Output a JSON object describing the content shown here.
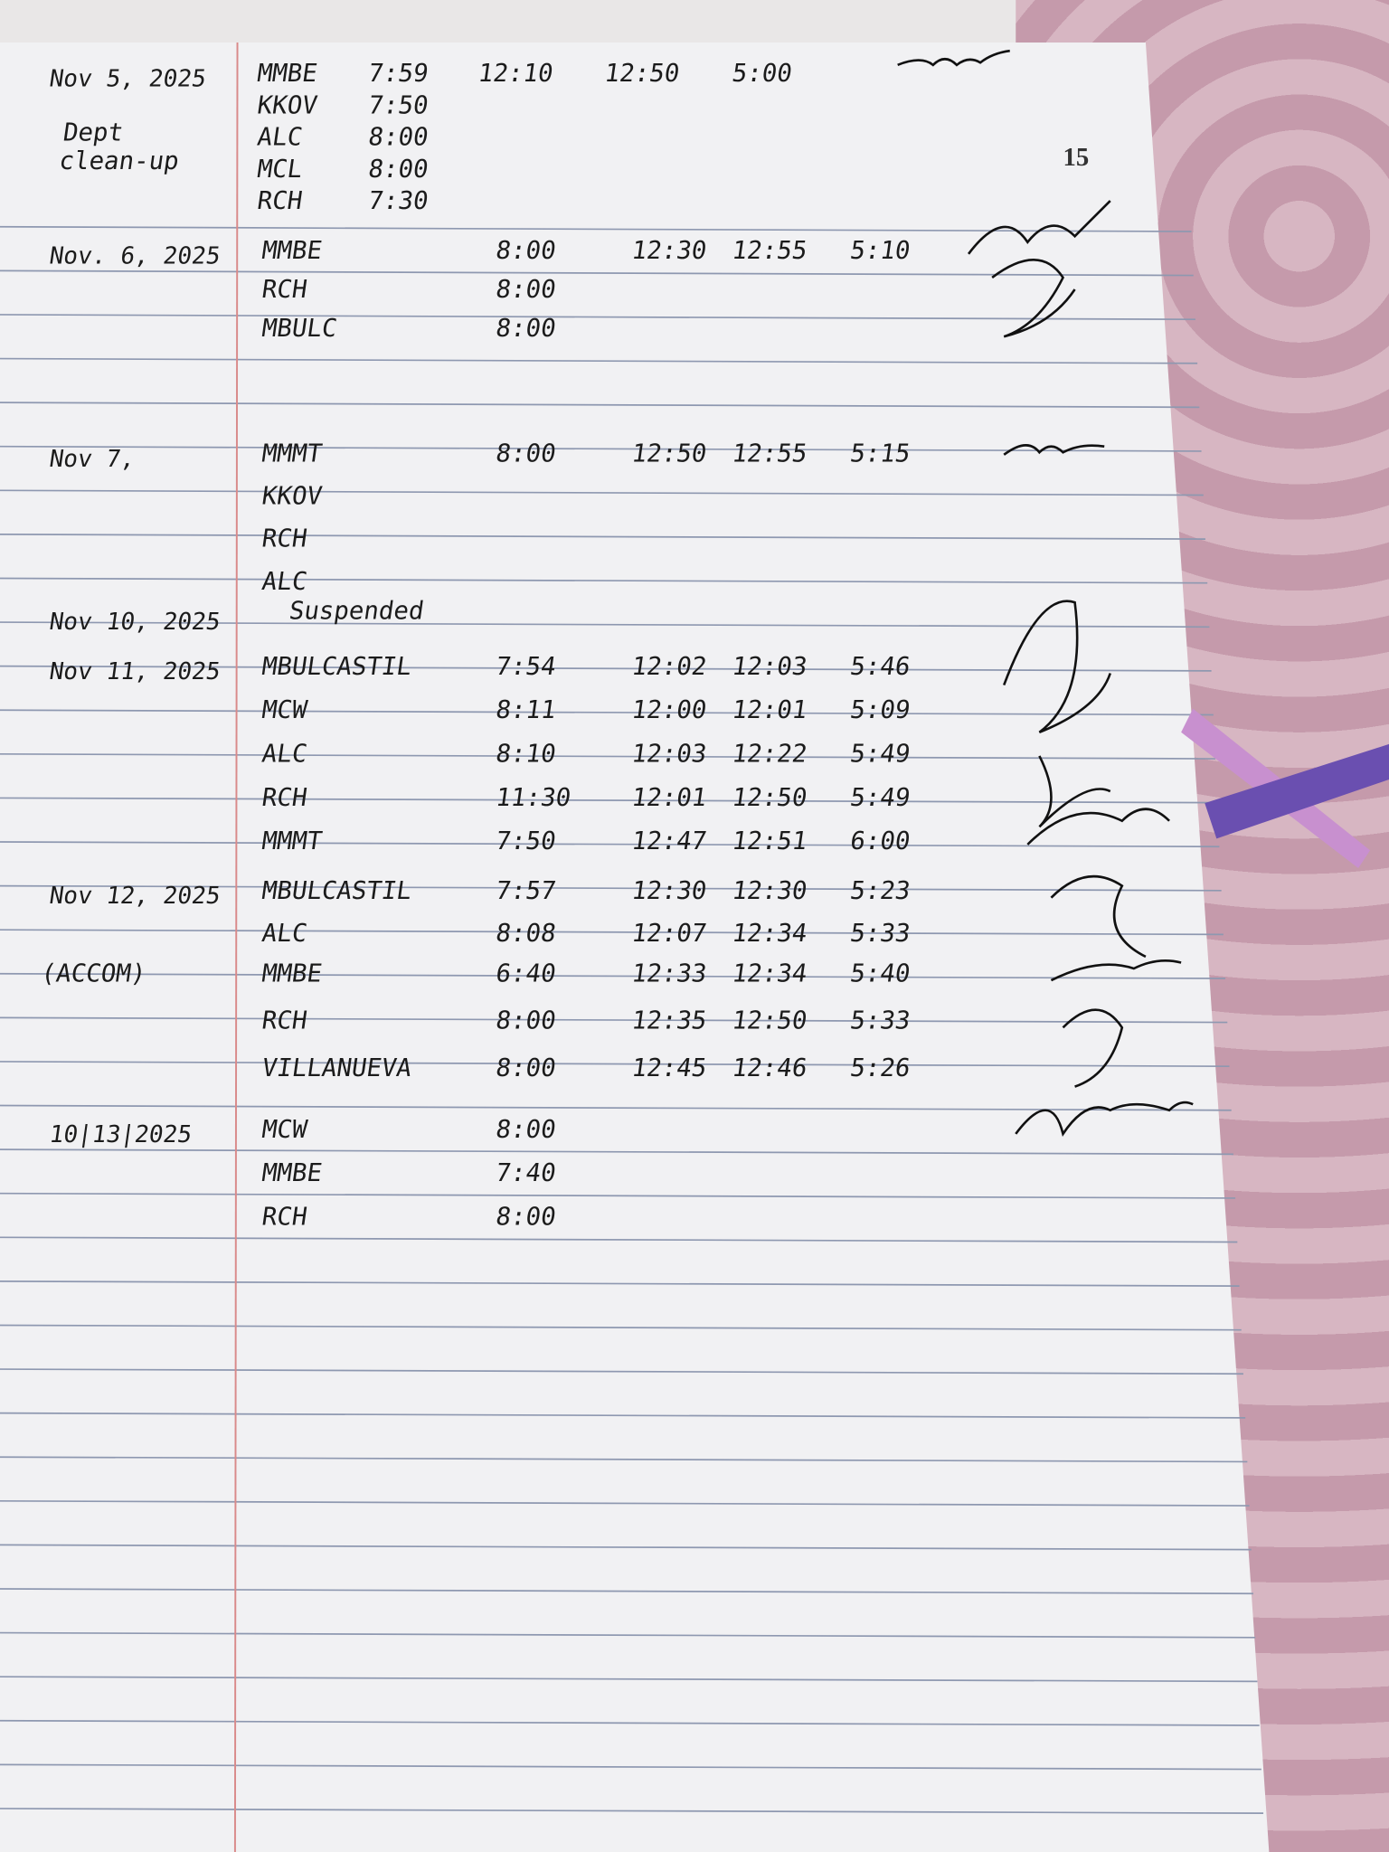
{
  "page_number": "15",
  "entries": [
    {
      "date": "Nov 5, 2025",
      "note": "Dept clean-up",
      "rows": [
        [
          "MMBE",
          "7:59",
          "12:10",
          "12:50",
          "5:00"
        ],
        [
          "KKOV",
          "7:50"
        ],
        [
          "ALC",
          "8:00"
        ],
        [
          "MCL",
          "8:00"
        ],
        [
          "RCH",
          "7:30"
        ]
      ]
    },
    {
      "date": "Nov. 6, 2025",
      "rows": [
        [
          "MMBE",
          "8:00",
          "12:30",
          "12:55",
          "5:10"
        ],
        [
          "RCH",
          "8:00"
        ],
        [
          "MBULC",
          "8:00"
        ]
      ]
    },
    {
      "date": "Nov 7,",
      "rows": [
        [
          "MMMT",
          "8:00",
          "12:50",
          "12:55",
          "5:15"
        ],
        [
          "KKOV"
        ],
        [
          "RCH"
        ],
        [
          "ALC"
        ]
      ]
    },
    {
      "date": "Nov 10, 2025",
      "note": "Suspended",
      "rows": []
    },
    {
      "date": "Nov 11, 2025",
      "rows": [
        [
          "MBULCASTIL",
          "7:54",
          "12:02",
          "12:03",
          "5:46"
        ],
        [
          "MCW",
          "8:11",
          "12:00",
          "12:01",
          "5:09"
        ],
        [
          "ALC",
          "8:10",
          "12:03",
          "12:22",
          "5:49"
        ],
        [
          "RCH",
          "11:30",
          "12:01",
          "12:50",
          "5:49"
        ],
        [
          "MMMT",
          "7:50",
          "12:47",
          "12:51",
          "6:00"
        ]
      ]
    },
    {
      "date": "Nov 12, 2025",
      "rows": [
        [
          "MBULCASTIL",
          "7:57",
          "12:30",
          "12:30",
          "5:23"
        ],
        [
          "ALC",
          "8:08",
          "12:07",
          "12:34",
          "5:33"
        ]
      ]
    },
    {
      "note": "(ACCOM)",
      "rows": [
        [
          "MMBE",
          "6:40",
          "12:33",
          "12:34",
          "5:40"
        ],
        [
          "RCH",
          "8:00",
          "12:35",
          "12:50",
          "5:33"
        ],
        [
          "VILLANUEVA",
          "8:00",
          "12:45",
          "12:46",
          "5:26"
        ]
      ]
    },
    {
      "date": "10|13|2025",
      "rows": [
        [
          "MCW",
          "8:00"
        ],
        [
          "MMBE",
          "7:40"
        ],
        [
          "RCH",
          "8:00"
        ]
      ]
    }
  ]
}
